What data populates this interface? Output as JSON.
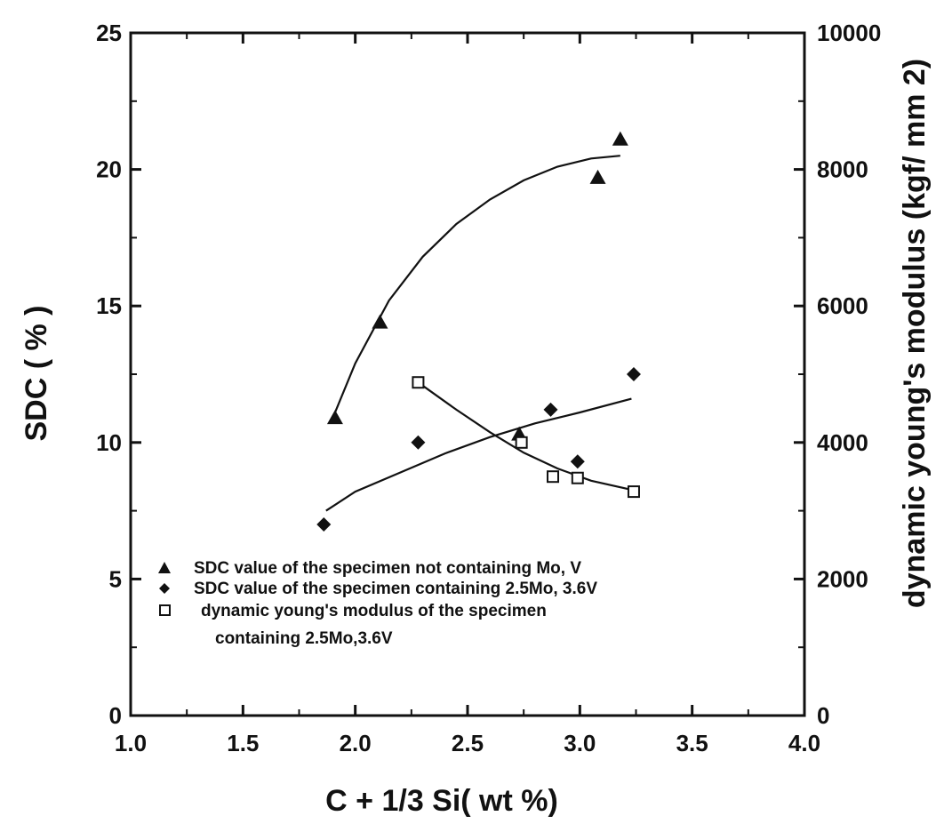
{
  "chart_data": {
    "type": "scatter",
    "title": "",
    "xlabel": "C + 1/3 Si( wt %)",
    "ylabel_left": "SDC ( % )",
    "ylabel_right": "dynamic young's modulus (kgf/ mm 2)",
    "xlim": [
      1.0,
      4.0
    ],
    "ylim_left": [
      0,
      25
    ],
    "ylim_right": [
      0,
      10000
    ],
    "x_ticks": [
      "1.0",
      "1.5",
      "2.0",
      "2.5",
      "3.0",
      "3.5",
      "4.0"
    ],
    "y_left_ticks": [
      "0",
      "5",
      "10",
      "15",
      "20",
      "25"
    ],
    "y_right_ticks": [
      "0",
      "2000",
      "4000",
      "6000",
      "8000",
      "10000"
    ],
    "grid": false,
    "legend_position": "bottom-left",
    "legend": [
      "SDC value of the specimen  not containing Mo, V",
      "SDC value of the specimen  containing 2.5Mo, 3.6V",
      "dynamic young's modulus of  the specimen",
      "containing 2.5Mo,3.6V"
    ],
    "series": [
      {
        "marker": "filled-triangle",
        "axis": "left",
        "x": [
          1.91,
          2.11,
          2.73,
          3.08,
          3.18
        ],
        "y": [
          10.9,
          14.4,
          10.3,
          19.7,
          21.1
        ],
        "trend": {
          "x": [
            1.9,
            2.0,
            2.15,
            2.3,
            2.45,
            2.6,
            2.75,
            2.9,
            3.05,
            3.18
          ],
          "y": [
            10.9,
            12.9,
            15.2,
            16.8,
            18.0,
            18.9,
            19.6,
            20.1,
            20.4,
            20.5
          ]
        }
      },
      {
        "marker": "filled-diamond",
        "axis": "left",
        "x": [
          1.86,
          2.28,
          2.87,
          2.99,
          3.24
        ],
        "y": [
          7.0,
          10.0,
          11.2,
          9.3,
          12.5
        ],
        "trend": {
          "x": [
            1.87,
            2.0,
            2.2,
            2.4,
            2.6,
            2.8,
            3.0,
            3.23
          ],
          "y": [
            7.5,
            8.2,
            8.9,
            9.6,
            10.2,
            10.7,
            11.1,
            11.6
          ]
        }
      },
      {
        "marker": "open-square",
        "axis": "right",
        "x": [
          2.28,
          2.74,
          2.88,
          2.99,
          3.24
        ],
        "y": [
          4880,
          4000,
          3500,
          3480,
          3280
        ],
        "trend": {
          "x": [
            2.28,
            2.45,
            2.6,
            2.75,
            2.9,
            3.05,
            3.24
          ],
          "y": [
            4880,
            4480,
            4150,
            3850,
            3620,
            3440,
            3300
          ]
        }
      }
    ]
  }
}
